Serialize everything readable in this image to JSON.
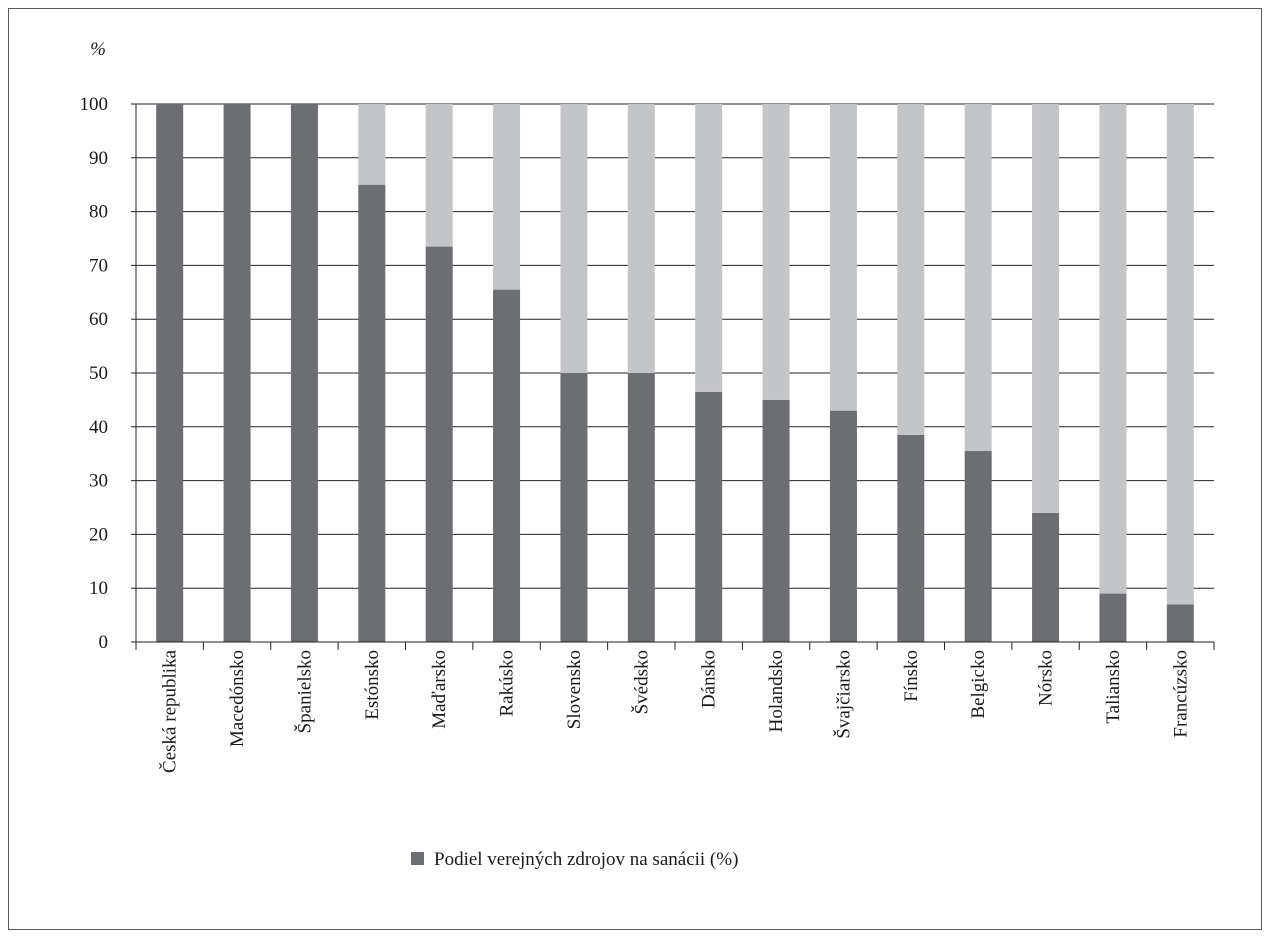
{
  "chart_data": {
    "type": "bar",
    "stacked": true,
    "ylabel": "%",
    "ylim": [
      0,
      100
    ],
    "yticks": [
      0,
      10,
      20,
      30,
      40,
      50,
      60,
      70,
      80,
      90,
      100
    ],
    "grid": true,
    "legend_position": "bottom",
    "categories": [
      "Česká republika",
      "Macedónsko",
      "Španielsko",
      "Estónsko",
      "Maďarsko",
      "Rakúsko",
      "Slovensko",
      "Švédsko",
      "Dánsko",
      "Holandsko",
      "Švajčiarsko",
      "Fínsko",
      "Belgicko",
      "Nórsko",
      "Taliansko",
      "Francúzsko"
    ],
    "series": [
      {
        "name": "Podiel verejných zdrojov na sanácii (%)",
        "color": "#6d6e71",
        "values": [
          100,
          100,
          100,
          85,
          73.5,
          65.5,
          50,
          50,
          46.5,
          45,
          43,
          38.5,
          35.5,
          24,
          9,
          7
        ]
      },
      {
        "color": "#c4c5c7",
        "values": [
          0,
          0,
          0,
          15,
          26.5,
          34.5,
          50,
          50,
          53.5,
          55,
          57,
          61.5,
          64.5,
          76,
          91,
          93
        ]
      }
    ]
  }
}
